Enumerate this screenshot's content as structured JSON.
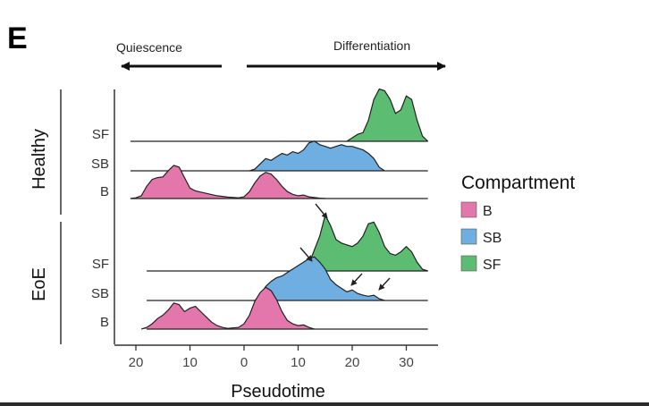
{
  "panel_letter": "E",
  "direction": {
    "left_label": "Quiescence",
    "right_label": "Differentiation"
  },
  "legend": {
    "title": "Compartment",
    "items": [
      {
        "key": "B",
        "label": "B",
        "color": "#e377ab"
      },
      {
        "key": "SB",
        "label": "SB",
        "color": "#6faee0"
      },
      {
        "key": "SF",
        "label": "SF",
        "color": "#5cbd72"
      }
    ]
  },
  "chart_data": {
    "type": "ridgeline",
    "xlabel": "Pseudotime",
    "xticks": [
      {
        "value": -20,
        "label": "20"
      },
      {
        "value": -10,
        "label": "10"
      },
      {
        "value": 0,
        "label": "0"
      },
      {
        "value": 10,
        "label": "10"
      },
      {
        "value": 20,
        "label": "20"
      },
      {
        "value": 30,
        "label": "30"
      }
    ],
    "xlim": [
      -23,
      36
    ],
    "colors": {
      "B": "#e377ab",
      "SB": "#6faee0",
      "SF": "#5cbd72"
    },
    "groups": [
      {
        "name": "Healthy",
        "ridges": [
          {
            "label": "B",
            "compartment": "B",
            "line_range": [
              -21,
              34
            ],
            "density": [
              [
                -21,
                0
              ],
              [
                -20,
                0.02
              ],
              [
                -19,
                0.08
              ],
              [
                -18,
                0.35
              ],
              [
                -17,
                0.55
              ],
              [
                -16,
                0.6
              ],
              [
                -15,
                0.62
              ],
              [
                -14,
                0.8
              ],
              [
                -13,
                0.95
              ],
              [
                -12,
                0.9
              ],
              [
                -11,
                0.6
              ],
              [
                -10,
                0.3
              ],
              [
                -9,
                0.22
              ],
              [
                -7,
                0.15
              ],
              [
                -5,
                0.08
              ],
              [
                -3,
                0.04
              ],
              [
                -1,
                0.02
              ],
              [
                0,
                0.05
              ],
              [
                1,
                0.2
              ],
              [
                2,
                0.45
              ],
              [
                3,
                0.65
              ],
              [
                4,
                0.75
              ],
              [
                5,
                0.7
              ],
              [
                6,
                0.55
              ],
              [
                7,
                0.35
              ],
              [
                8,
                0.2
              ],
              [
                9,
                0.12
              ],
              [
                10,
                0.08
              ],
              [
                11,
                0.1
              ],
              [
                12,
                0.05
              ],
              [
                14,
                0.01
              ],
              [
                15,
                0
              ]
            ],
            "fill_range": [
              -21,
              15
            ]
          },
          {
            "label": "SB",
            "compartment": "SB",
            "line_range": [
              -21,
              34
            ],
            "density": [
              [
                1,
                0
              ],
              [
                2,
                0.05
              ],
              [
                3,
                0.2
              ],
              [
                4,
                0.35
              ],
              [
                5,
                0.3
              ],
              [
                6,
                0.4
              ],
              [
                7,
                0.5
              ],
              [
                8,
                0.45
              ],
              [
                9,
                0.55
              ],
              [
                10,
                0.5
              ],
              [
                11,
                0.6
              ],
              [
                12,
                0.8
              ],
              [
                13,
                0.85
              ],
              [
                14,
                0.75
              ],
              [
                15,
                0.7
              ],
              [
                16,
                0.65
              ],
              [
                17,
                0.7
              ],
              [
                18,
                0.75
              ],
              [
                19,
                0.7
              ],
              [
                20,
                0.7
              ],
              [
                21,
                0.65
              ],
              [
                22,
                0.6
              ],
              [
                23,
                0.5
              ],
              [
                24,
                0.35
              ],
              [
                25,
                0.1
              ],
              [
                26,
                0
              ]
            ],
            "fill_range": [
              1,
              26
            ]
          },
          {
            "label": "SF",
            "compartment": "SF",
            "line_range": [
              -21,
              34
            ],
            "density": [
              [
                19,
                0
              ],
              [
                20,
                0.1
              ],
              [
                21,
                0.2
              ],
              [
                22,
                0.25
              ],
              [
                23,
                0.6
              ],
              [
                24,
                1.2
              ],
              [
                25,
                1.5
              ],
              [
                26,
                1.45
              ],
              [
                27,
                1.2
              ],
              [
                28,
                0.8
              ],
              [
                29,
                0.9
              ],
              [
                30,
                1.3
              ],
              [
                31,
                1.2
              ],
              [
                32,
                0.6
              ],
              [
                33,
                0.15
              ],
              [
                34,
                0
              ]
            ],
            "fill_range": [
              19,
              34
            ]
          }
        ]
      },
      {
        "name": "EoE",
        "ridges": [
          {
            "label": "B",
            "compartment": "B",
            "line_range": [
              -18,
              34
            ],
            "density": [
              [
                -19,
                0
              ],
              [
                -18,
                0.05
              ],
              [
                -17,
                0.15
              ],
              [
                -16,
                0.3
              ],
              [
                -15,
                0.4
              ],
              [
                -14,
                0.55
              ],
              [
                -13,
                0.75
              ],
              [
                -12,
                0.7
              ],
              [
                -11,
                0.5
              ],
              [
                -10,
                0.6
              ],
              [
                -9,
                0.65
              ],
              [
                -8,
                0.5
              ],
              [
                -7,
                0.35
              ],
              [
                -6,
                0.2
              ],
              [
                -5,
                0.1
              ],
              [
                -4,
                0.05
              ],
              [
                -3,
                0.02
              ],
              [
                -1,
                0.05
              ],
              [
                0,
                0.15
              ],
              [
                1,
                0.4
              ],
              [
                2,
                0.8
              ],
              [
                3,
                1.05
              ],
              [
                4,
                1.2
              ],
              [
                5,
                1.1
              ],
              [
                6,
                0.85
              ],
              [
                7,
                0.5
              ],
              [
                8,
                0.25
              ],
              [
                9,
                0.15
              ],
              [
                10,
                0.1
              ],
              [
                11,
                0.12
              ],
              [
                12,
                0.05
              ],
              [
                13,
                0
              ]
            ],
            "fill_range": [
              -19,
              13
            ]
          },
          {
            "label": "SB",
            "compartment": "SB",
            "line_range": [
              -18,
              34
            ],
            "density": [
              [
                2,
                0
              ],
              [
                3,
                0.15
              ],
              [
                4,
                0.4
              ],
              [
                5,
                0.55
              ],
              [
                6,
                0.65
              ],
              [
                7,
                0.7
              ],
              [
                8,
                0.8
              ],
              [
                9,
                0.9
              ],
              [
                10,
                1.0
              ],
              [
                11,
                1.1
              ],
              [
                12,
                1.2
              ],
              [
                13,
                1.25
              ],
              [
                14,
                1.1
              ],
              [
                15,
                0.9
              ],
              [
                16,
                0.6
              ],
              [
                17,
                0.45
              ],
              [
                18,
                0.35
              ],
              [
                19,
                0.25
              ],
              [
                20,
                0.3
              ],
              [
                21,
                0.2
              ],
              [
                22,
                0.15
              ],
              [
                23,
                0.12
              ],
              [
                24,
                0.15
              ],
              [
                25,
                0.05
              ],
              [
                26,
                0
              ]
            ],
            "fill_range": [
              2,
              26
            ]
          },
          {
            "label": "SF",
            "compartment": "SF",
            "line_range": [
              -18,
              34
            ],
            "density": [
              [
                11,
                0
              ],
              [
                12,
                0.2
              ],
              [
                13,
                0.6
              ],
              [
                14,
                1.0
              ],
              [
                15,
                1.6
              ],
              [
                16,
                1.3
              ],
              [
                17,
                0.9
              ],
              [
                18,
                0.8
              ],
              [
                19,
                0.75
              ],
              [
                20,
                0.7
              ],
              [
                21,
                0.8
              ],
              [
                22,
                1.0
              ],
              [
                23,
                1.35
              ],
              [
                24,
                1.4
              ],
              [
                25,
                1.1
              ],
              [
                26,
                0.7
              ],
              [
                27,
                0.5
              ],
              [
                28,
                0.45
              ],
              [
                29,
                0.55
              ],
              [
                30,
                0.7
              ],
              [
                31,
                0.55
              ],
              [
                32,
                0.25
              ],
              [
                33,
                0.05
              ],
              [
                34,
                0
              ]
            ],
            "fill_range": [
              11,
              34
            ]
          }
        ]
      }
    ],
    "annotations": [
      {
        "type": "arrow",
        "group": "EoE",
        "x": 15.5
      },
      {
        "type": "arrow",
        "group": "EoE",
        "x": 12.5
      },
      {
        "type": "arrow",
        "group": "EoE",
        "x": 19.5
      },
      {
        "type": "arrow",
        "group": "EoE",
        "x": 24.5
      }
    ]
  }
}
